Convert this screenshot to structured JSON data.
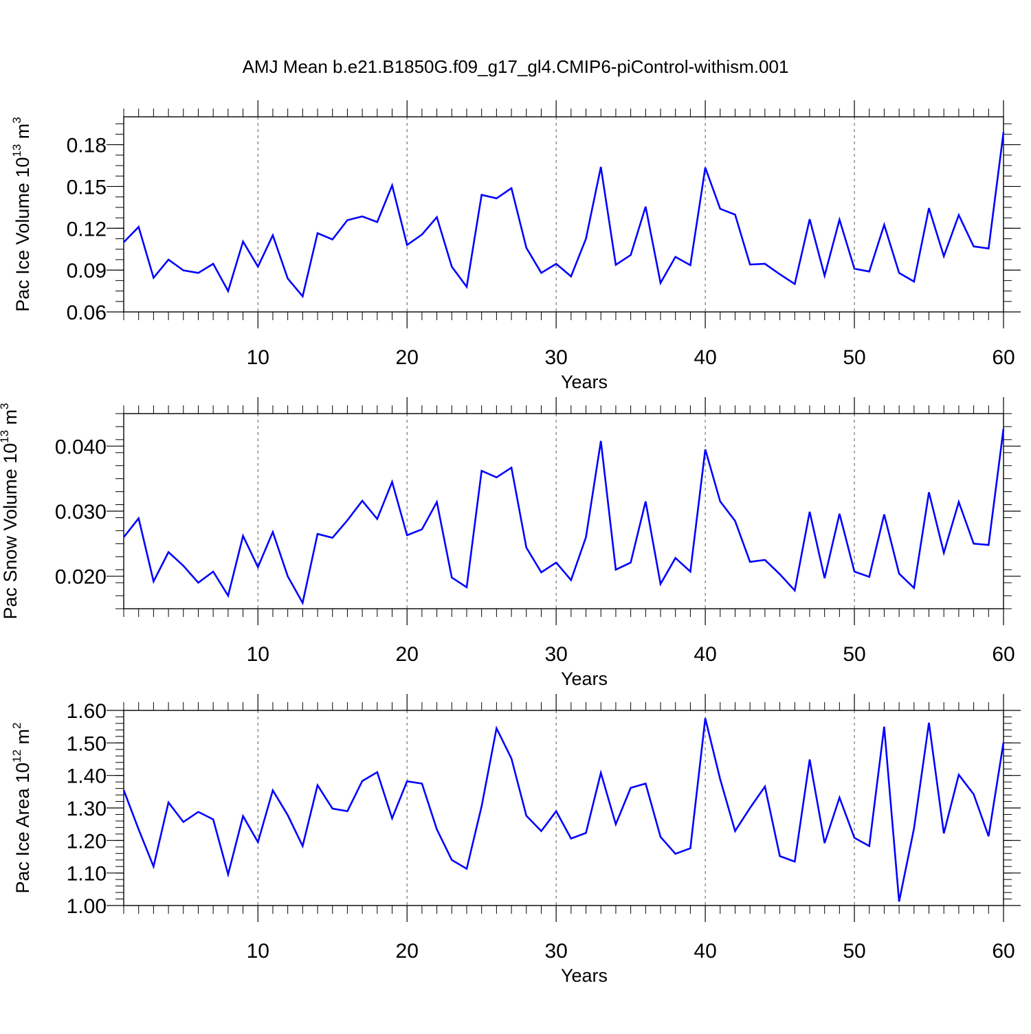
{
  "title": "AMJ Mean b.e21.B1850G.f09_g17_gl4.CMIP6-piControl-withism.001",
  "line_color": "#0000ff",
  "chart_data": [
    {
      "type": "line",
      "ylabel": "Pac Ice Volume 10",
      "ylabel_exp": "13",
      "ylabel_unit": " m",
      "ylabel_unit_exp": "3",
      "xlabel": "Years",
      "xlim": [
        1,
        60
      ],
      "ylim": [
        0.06,
        0.2
      ],
      "yticks": [
        0.06,
        0.09,
        0.12,
        0.15,
        0.18
      ],
      "ytick_labels": [
        "0.06",
        "0.09",
        "0.12",
        "0.15",
        "0.18"
      ],
      "yminor_step": 0.0075,
      "xticks": [
        10,
        20,
        30,
        40,
        50,
        60
      ],
      "xtick_labels": [
        "10",
        "20",
        "30",
        "40",
        "50",
        "60"
      ],
      "grid_x": [
        10,
        20,
        30,
        40,
        50
      ],
      "x": [
        1,
        2,
        3,
        4,
        5,
        6,
        7,
        8,
        9,
        10,
        11,
        12,
        13,
        14,
        15,
        16,
        17,
        18,
        19,
        20,
        21,
        22,
        23,
        24,
        25,
        26,
        27,
        28,
        29,
        30,
        31,
        32,
        33,
        34,
        35,
        36,
        37,
        38,
        39,
        40,
        41,
        42,
        43,
        44,
        45,
        46,
        47,
        48,
        49,
        50,
        51,
        52,
        53,
        54,
        55,
        56,
        57,
        58,
        59,
        60
      ],
      "values": [
        0.11,
        0.121,
        0.0845,
        0.0975,
        0.0898,
        0.088,
        0.0945,
        0.075,
        0.1105,
        0.0925,
        0.115,
        0.084,
        0.0712,
        0.1165,
        0.112,
        0.1258,
        0.1285,
        0.1245,
        0.1508,
        0.108,
        0.1155,
        0.128,
        0.0925,
        0.078,
        0.144,
        0.1415,
        0.1488,
        0.106,
        0.088,
        0.0945,
        0.0855,
        0.1125,
        0.164,
        0.0938,
        0.1008,
        0.1355,
        0.0808,
        0.0995,
        0.0935,
        0.1635,
        0.134,
        0.1298,
        0.094,
        0.0945,
        0.087,
        0.08,
        0.1265,
        0.086,
        0.1262,
        0.091,
        0.089,
        0.1225,
        0.088,
        0.0818,
        0.1345,
        0.1,
        0.1295,
        0.107,
        0.1055,
        0.189
      ]
    },
    {
      "type": "line",
      "ylabel": "Pac Snow Volume 10",
      "ylabel_exp": "13",
      "ylabel_unit": " m",
      "ylabel_unit_exp": "3",
      "xlabel": "Years",
      "xlim": [
        1,
        60
      ],
      "ylim": [
        0.015,
        0.045
      ],
      "yticks": [
        0.02,
        0.03,
        0.04
      ],
      "ytick_labels": [
        "0.020",
        "0.030",
        "0.040"
      ],
      "yminor_step": 0.002,
      "xticks": [
        10,
        20,
        30,
        40,
        50,
        60
      ],
      "xtick_labels": [
        "10",
        "20",
        "30",
        "40",
        "50",
        "60"
      ],
      "grid_x": [
        10,
        20,
        30,
        40,
        50
      ],
      "x": [
        1,
        2,
        3,
        4,
        5,
        6,
        7,
        8,
        9,
        10,
        11,
        12,
        13,
        14,
        15,
        16,
        17,
        18,
        19,
        20,
        21,
        22,
        23,
        24,
        25,
        26,
        27,
        28,
        29,
        30,
        31,
        32,
        33,
        34,
        35,
        36,
        37,
        38,
        39,
        40,
        41,
        42,
        43,
        44,
        45,
        46,
        47,
        48,
        49,
        50,
        51,
        52,
        53,
        54,
        55,
        56,
        57,
        58,
        59,
        60
      ],
      "values": [
        0.026,
        0.0289,
        0.0192,
        0.0237,
        0.0216,
        0.019,
        0.0207,
        0.017,
        0.0262,
        0.0214,
        0.0268,
        0.02,
        0.0159,
        0.0265,
        0.0259,
        0.0286,
        0.0316,
        0.0288,
        0.0345,
        0.0263,
        0.0272,
        0.0314,
        0.0198,
        0.0183,
        0.0362,
        0.0352,
        0.0367,
        0.0244,
        0.0206,
        0.0221,
        0.0194,
        0.026,
        0.0408,
        0.021,
        0.0221,
        0.0315,
        0.0188,
        0.0228,
        0.0207,
        0.0395,
        0.0315,
        0.0285,
        0.0222,
        0.0225,
        0.0203,
        0.0178,
        0.0299,
        0.0197,
        0.0296,
        0.0207,
        0.0199,
        0.0295,
        0.0204,
        0.0182,
        0.0329,
        0.0236,
        0.0314,
        0.025,
        0.0248,
        0.0427
      ]
    },
    {
      "type": "line",
      "ylabel": "Pac Ice Area 10",
      "ylabel_exp": "12",
      "ylabel_unit": " m",
      "ylabel_unit_exp": "2",
      "xlabel": "Years",
      "xlim": [
        1,
        60
      ],
      "ylim": [
        1.0,
        1.6
      ],
      "yticks": [
        1.0,
        1.1,
        1.2,
        1.3,
        1.4,
        1.5,
        1.6
      ],
      "ytick_labels": [
        "1.00",
        "1.10",
        "1.20",
        "1.30",
        "1.40",
        "1.50",
        "1.60"
      ],
      "yminor_step": 0.02,
      "xticks": [
        10,
        20,
        30,
        40,
        50,
        60
      ],
      "xtick_labels": [
        "10",
        "20",
        "30",
        "40",
        "50",
        "60"
      ],
      "grid_x": [
        10,
        20,
        30,
        40,
        50
      ],
      "x": [
        1,
        2,
        3,
        4,
        5,
        6,
        7,
        8,
        9,
        10,
        11,
        12,
        13,
        14,
        15,
        16,
        17,
        18,
        19,
        20,
        21,
        22,
        23,
        24,
        25,
        26,
        27,
        28,
        29,
        30,
        31,
        32,
        33,
        34,
        35,
        36,
        37,
        38,
        39,
        40,
        41,
        42,
        43,
        44,
        45,
        46,
        47,
        48,
        49,
        50,
        51,
        52,
        53,
        54,
        55,
        56,
        57,
        58,
        59,
        60
      ],
      "values": [
        1.355,
        1.234,
        1.12,
        1.317,
        1.257,
        1.288,
        1.265,
        1.096,
        1.275,
        1.195,
        1.354,
        1.278,
        1.183,
        1.37,
        1.298,
        1.29,
        1.383,
        1.41,
        1.268,
        1.382,
        1.375,
        1.234,
        1.14,
        1.113,
        1.305,
        1.545,
        1.452,
        1.276,
        1.229,
        1.29,
        1.206,
        1.223,
        1.408,
        1.25,
        1.362,
        1.375,
        1.211,
        1.159,
        1.176,
        1.576,
        1.388,
        1.229,
        1.3,
        1.366,
        1.152,
        1.135,
        1.449,
        1.192,
        1.332,
        1.208,
        1.183,
        1.55,
        1.012,
        1.237,
        1.562,
        1.222,
        1.402,
        1.342,
        1.213,
        1.502
      ]
    }
  ]
}
